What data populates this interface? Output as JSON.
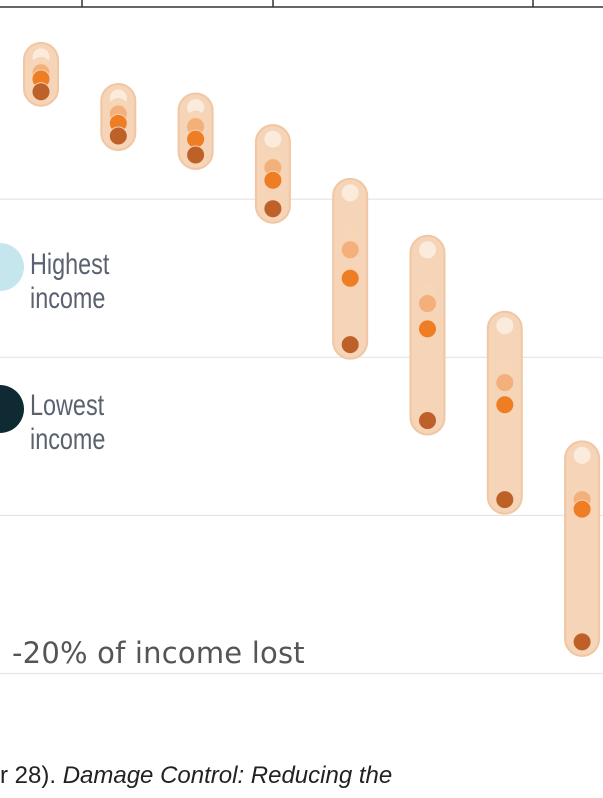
{
  "legend": {
    "highest": {
      "line1": "Highest",
      "line2": "income",
      "color": "#c5e6ec"
    },
    "lowest": {
      "line1": "Lowest",
      "line2": "income",
      "color": "#0f2a33"
    }
  },
  "annotation": {
    "label": "-20% of income lost"
  },
  "source": {
    "plain": "r 28). ",
    "italic": "Damage Control: Reducing the"
  },
  "colors": {
    "band": "#f6d4b7",
    "band_stroke": "#f1c6a2",
    "q1": "#faebdd",
    "q2": "#f7d6b8",
    "q3": "#f3b07a",
    "q4": "#ee7d24",
    "q5": "#bd6129",
    "gridline": "#e4e4e4",
    "axis": "#333333"
  },
  "chart_data": {
    "type": "scatter",
    "title": "",
    "xlabel": "",
    "ylabel": "",
    "ylim": [
      -24,
      1.3
    ],
    "groups": 8,
    "series": [
      {
        "values": [
          -0.5,
          -1.8,
          -2.1,
          -3.1,
          -4.8,
          -6.6,
          -9.0,
          -13.1
        ]
      },
      {
        "values": [
          -0.8,
          -2.1,
          -2.5,
          -3.7,
          -6.1,
          -7.9,
          -10.4,
          -14.3
        ]
      },
      {
        "values": [
          -1.0,
          -2.3,
          -2.7,
          -4.0,
          -6.6,
          -8.3,
          -10.8,
          -14.5
        ]
      },
      {
        "values": [
          -1.2,
          -2.6,
          -3.1,
          -4.4,
          -7.5,
          -9.1,
          -11.5,
          -14.8
        ]
      },
      {
        "values": [
          -1.6,
          -3.0,
          -3.6,
          -5.3,
          -9.6,
          -12.0,
          -14.5,
          -19.0
        ]
      }
    ]
  }
}
